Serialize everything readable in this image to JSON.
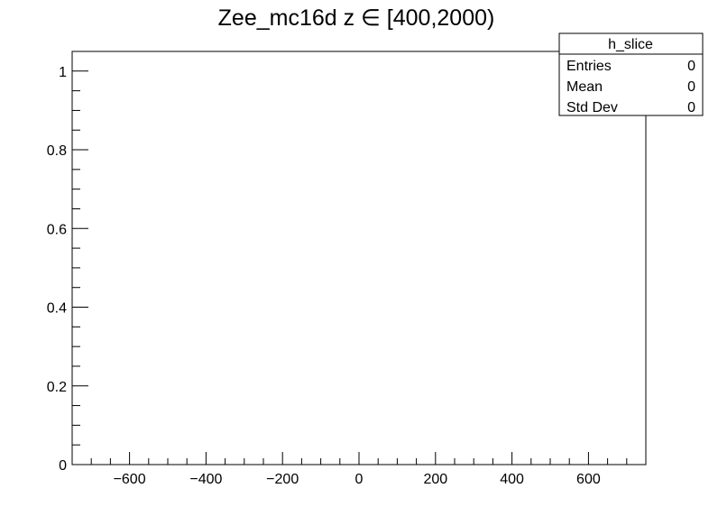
{
  "chart_data": {
    "type": "bar",
    "title": "Zee_mc16d z  ∈ [400,2000)",
    "xlabel": "",
    "ylabel": "",
    "xlim": [
      -750,
      750
    ],
    "ylim": [
      0,
      1.05
    ],
    "x_major_ticks": [
      -600,
      -400,
      -200,
      0,
      200,
      400,
      600
    ],
    "x_tick_labels": [
      "−600",
      "−400",
      "−200",
      "0",
      "200",
      "400",
      "600"
    ],
    "y_major_ticks": [
      0,
      0.2,
      0.4,
      0.6,
      0.8,
      1
    ],
    "y_tick_labels": [
      "0",
      "0.2",
      "0.4",
      "0.6",
      "0.8",
      "1"
    ],
    "series": [],
    "grid": false,
    "stats_box": {
      "name": "h_slice",
      "rows": [
        {
          "label": "Entries",
          "value": "0"
        },
        {
          "label": "Mean",
          "value": "0"
        },
        {
          "label": "Std Dev",
          "value": "0"
        }
      ]
    }
  }
}
